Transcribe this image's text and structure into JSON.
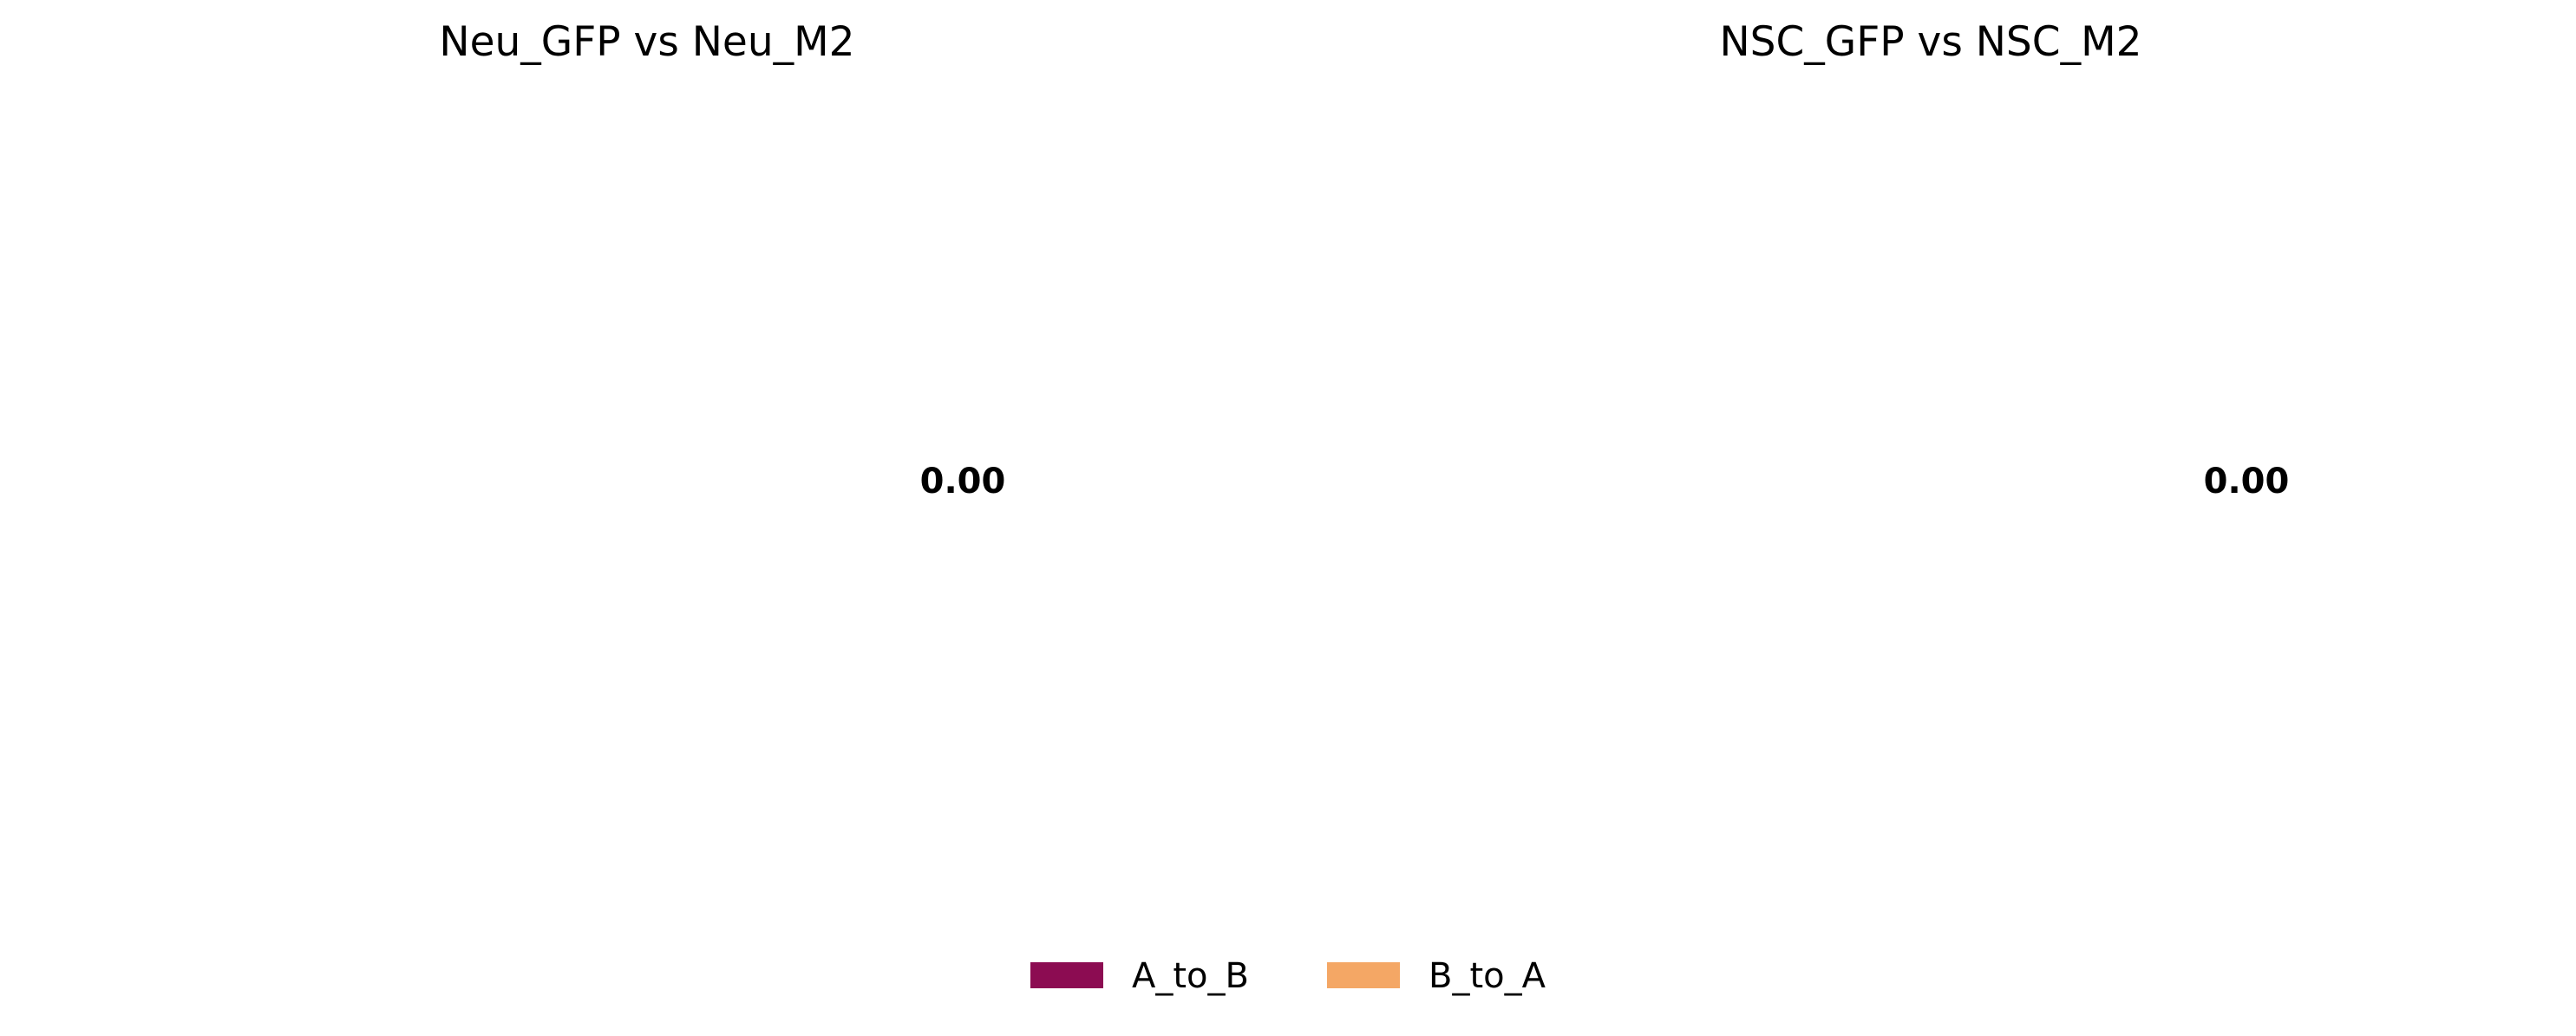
{
  "chart_data": [
    {
      "type": "pie",
      "title": "Neu_GFP vs Neu_M2",
      "categories": [
        "A_to_B",
        "B_to_A"
      ],
      "values": [
        0,
        0
      ],
      "center_label": "0.00"
    },
    {
      "type": "pie",
      "title": "NSC_GFP vs NSC_M2",
      "categories": [
        "A_to_B",
        "B_to_A"
      ],
      "values": [
        0,
        0
      ],
      "center_label": "0.00"
    }
  ],
  "legend": {
    "placement": "bottom-center",
    "items": [
      {
        "label": "A_to_B",
        "color": "#8c0c52"
      },
      {
        "label": "B_to_A",
        "color": "#f4a765"
      }
    ]
  }
}
